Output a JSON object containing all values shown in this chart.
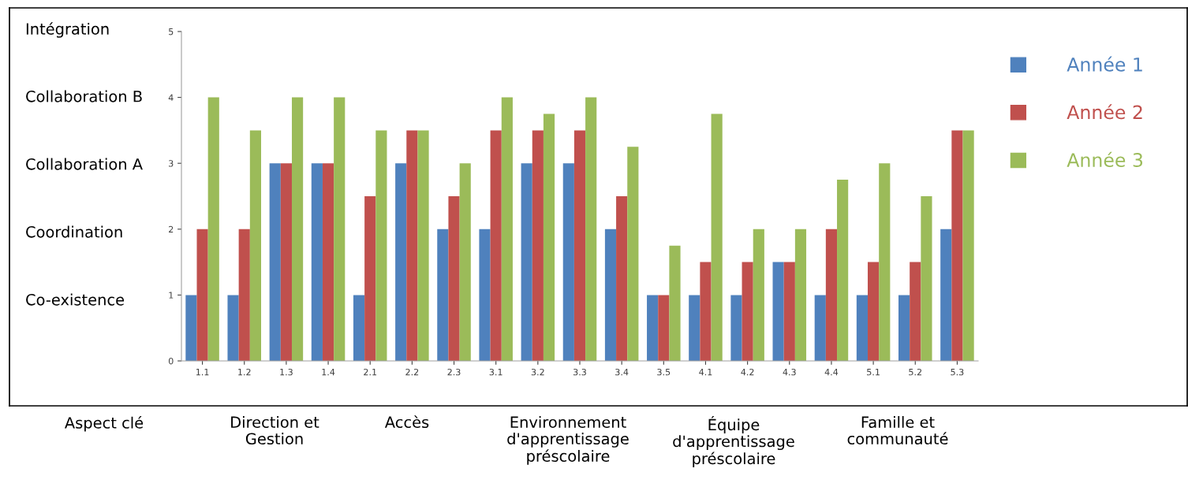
{
  "chart_data": {
    "type": "bar",
    "categories": [
      "1.1",
      "1.2",
      "1.3",
      "1.4",
      "2.1",
      "2.2",
      "2.3",
      "3.1",
      "3.2",
      "3.3",
      "3.4",
      "3.5",
      "4.1",
      "4.2",
      "4.3",
      "4.4",
      "5.1",
      "5.2",
      "5.3"
    ],
    "series": [
      {
        "name": "Année 1",
        "color": "#4f81bd",
        "values": [
          1,
          1,
          3,
          3,
          1,
          3,
          2,
          2,
          3,
          3,
          2,
          1,
          1,
          1,
          1.5,
          1,
          1,
          1,
          2
        ]
      },
      {
        "name": "Année 2",
        "color": "#c0504d",
        "values": [
          2,
          2,
          3,
          3,
          2.5,
          3.5,
          2.5,
          3.5,
          3.5,
          3.5,
          2.5,
          1,
          1.5,
          1.5,
          1.5,
          2,
          1.5,
          1.5,
          3.5
        ]
      },
      {
        "name": "Année 3",
        "color": "#9bbb59",
        "values": [
          4,
          3.5,
          4,
          4,
          3.5,
          3.5,
          3,
          4,
          3.75,
          4,
          3.25,
          1.75,
          3.75,
          2,
          2,
          2.75,
          3,
          2.5,
          3.5
        ]
      }
    ],
    "ylim": [
      0,
      5
    ],
    "yticks": [
      0,
      1,
      2,
      3,
      4,
      5
    ],
    "annotations": [
      "Intégration",
      "Collaboration B",
      "Collaboration A",
      "Coordination",
      "Co-existence",
      "Aspect clé",
      "Direction et\nGestion",
      "Accès",
      "Environnement\nd'apprentissage\npréscolaire",
      "Équipe\nd'apprentissage\npréscolaire",
      "Famille et\ncommunauté"
    ],
    "grid": false,
    "legend": "right"
  }
}
